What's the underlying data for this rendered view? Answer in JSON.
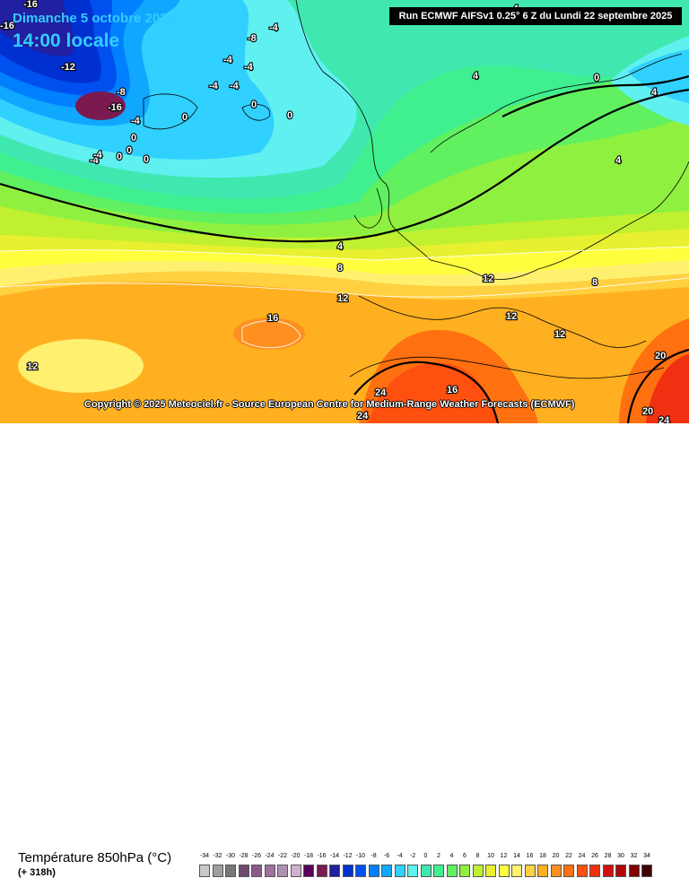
{
  "header": {
    "date": "Dimanche 5 octobre 2025",
    "time": "14:00 locale",
    "run": "Run ECMWF AIFSv1 0.25° 6 Z du Lundi 22 septembre 2025"
  },
  "footer": {
    "copyright": "Copyright © 2025 Meteociel.fr - Source European Centre for Medium-Range Weather Forecasts (ECMWF)",
    "parameter": "Température 850hPa (°C)",
    "forecast_range": "(+ 318h)"
  },
  "contour_labels": [
    "-16",
    "-16",
    "-12",
    "-8",
    "-16",
    "-4",
    "-4",
    "-4",
    "-4",
    "-8",
    "-4",
    "-4",
    "-4",
    "0",
    "0",
    "0",
    "0",
    "0",
    "0",
    "0",
    "0",
    "4",
    "4",
    "4",
    "8",
    "8",
    "12",
    "12",
    "12",
    "12",
    "12",
    "16",
    "16",
    "24",
    "24",
    "20",
    "20",
    "24",
    "-4",
    "-4",
    "4"
  ],
  "legend": {
    "values": [
      "-34",
      "-32",
      "-30",
      "-28",
      "-26",
      "-24",
      "-22",
      "-20",
      "-18",
      "-16",
      "-14",
      "-12",
      "-10",
      "-8",
      "-6",
      "-4",
      "-2",
      "0",
      "2",
      "4",
      "6",
      "8",
      "10",
      "12",
      "14",
      "16",
      "18",
      "20",
      "22",
      "24",
      "26",
      "28",
      "30",
      "32",
      "34"
    ],
    "colors": [
      "#c8c8c8",
      "#a0a0a0",
      "#787878",
      "#6e4a6e",
      "#8a5a8a",
      "#a070a0",
      "#b090b0",
      "#d0b0d0",
      "#5a005a",
      "#7a1a50",
      "#2020a0",
      "#0030d0",
      "#0050f0",
      "#0080ff",
      "#10a8ff",
      "#30d0ff",
      "#60f0f0",
      "#40e8b0",
      "#40f090",
      "#60f060",
      "#90f040",
      "#c0f030",
      "#e8f030",
      "#ffff40",
      "#fff070",
      "#ffd040",
      "#ffb020",
      "#ff9020",
      "#ff7010",
      "#ff5010",
      "#f03010",
      "#d01010",
      "#b00808",
      "#800000",
      "#400000"
    ]
  },
  "colors": {
    "title_text": "#33ccff",
    "run_bg": "#000000"
  }
}
